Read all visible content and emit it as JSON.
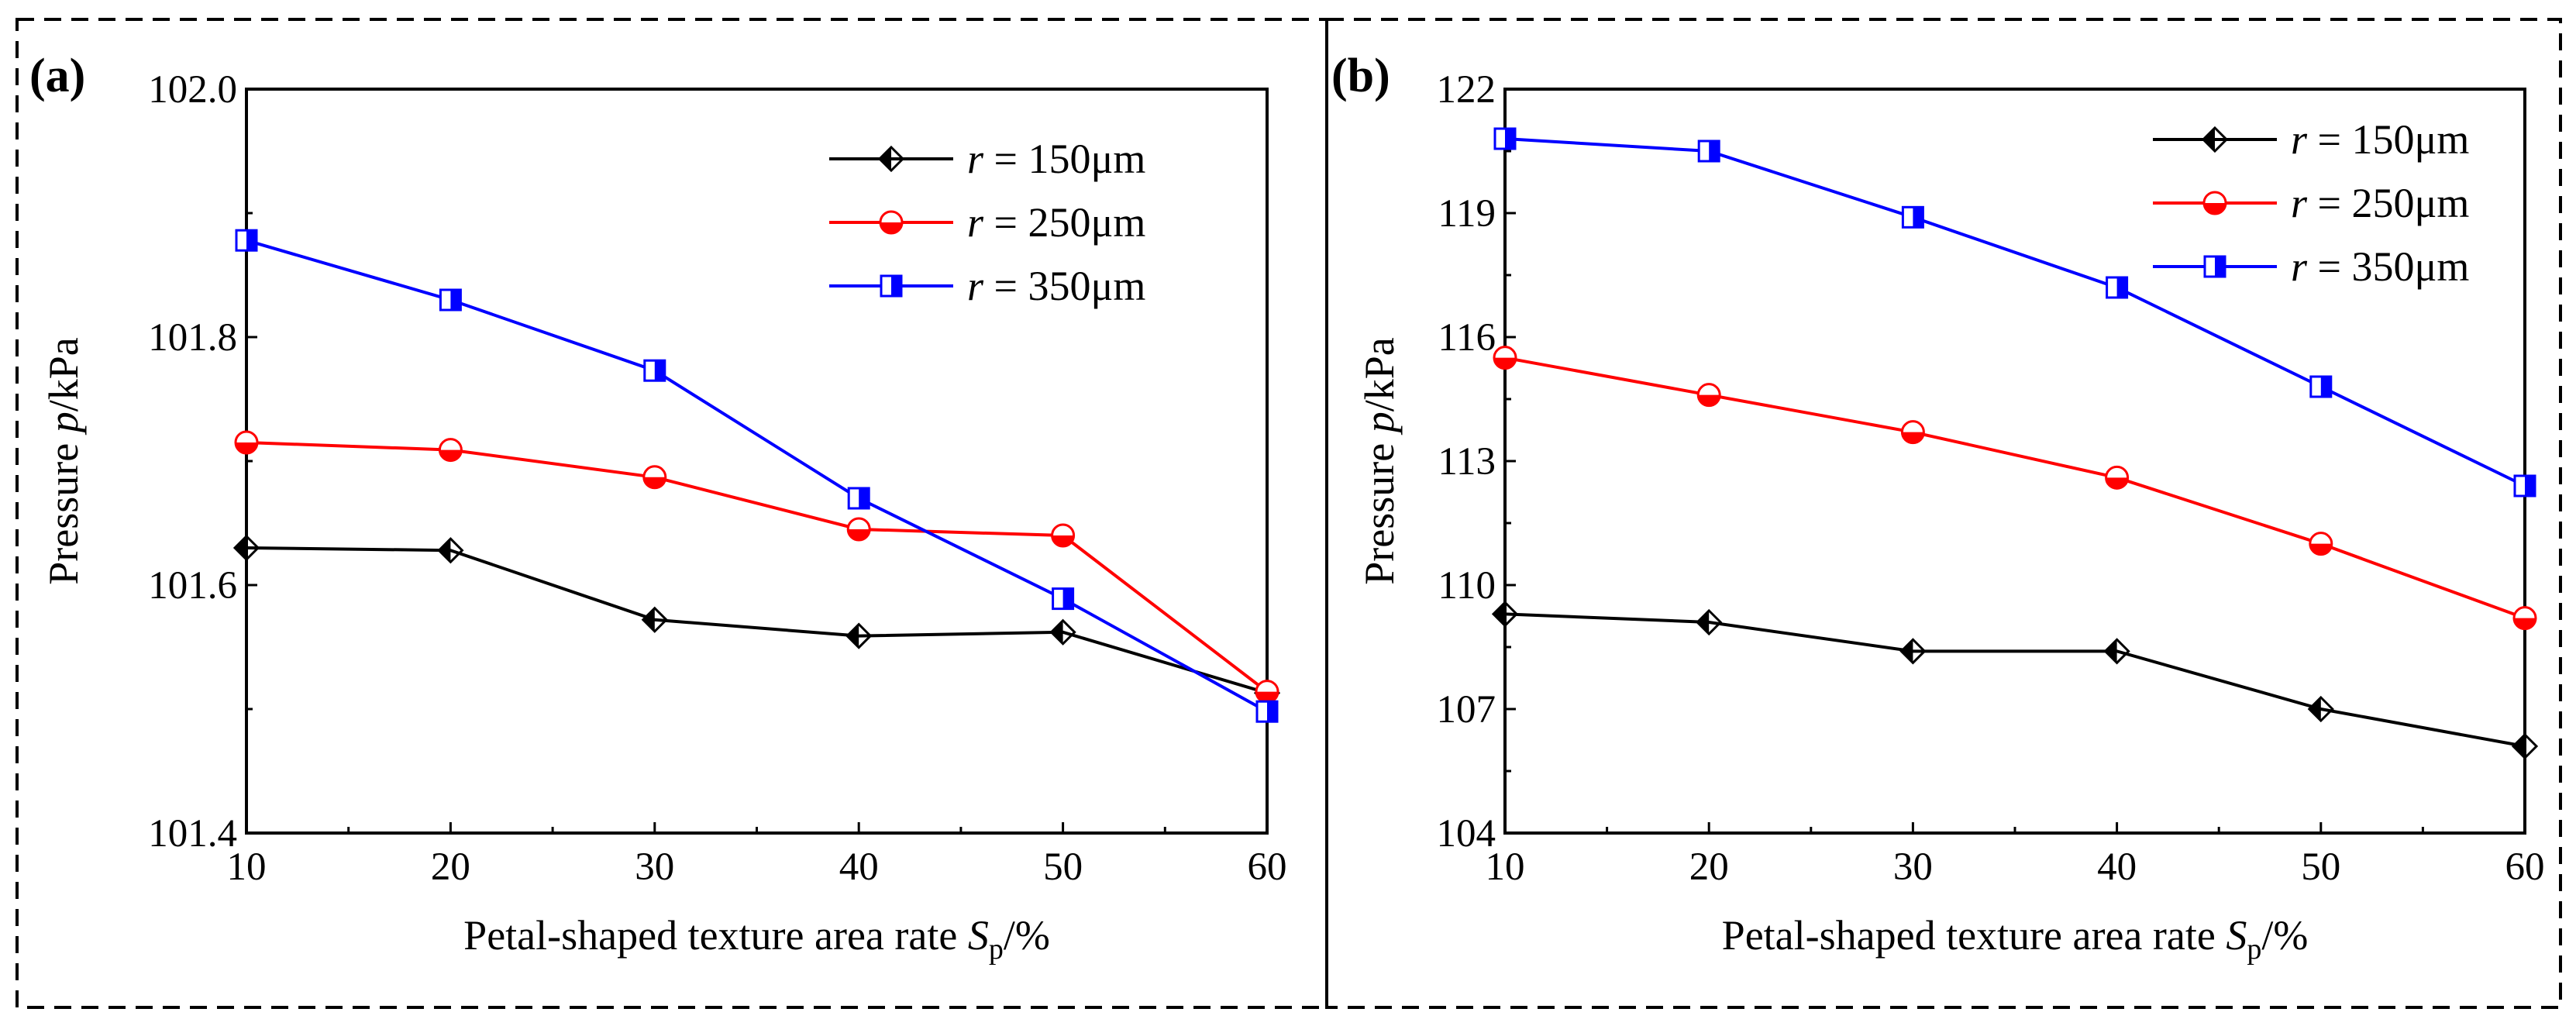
{
  "chart_data": [
    {
      "type": "line",
      "panel_label": "(a)",
      "xlabel": "Petal-shaped texture area rate ",
      "xlabel_var": "S",
      "xlabel_sub": "p",
      "xlabel_suffix": "/%",
      "ylabel": "Pressure ",
      "ylabel_var": "p",
      "ylabel_suffix": "/kPa",
      "x": [
        10,
        20,
        30,
        40,
        50,
        60
      ],
      "xlim": [
        10,
        60
      ],
      "ylim": [
        101.4,
        102.0
      ],
      "xticks": [
        "10",
        "20",
        "30",
        "40",
        "50",
        "60"
      ],
      "yticks": [
        "101.4",
        "101.6",
        "101.8",
        "102.0"
      ],
      "legend_position": "top-right",
      "series": [
        {
          "var": "r",
          "label": " = 150μm",
          "color": "#000000",
          "marker": "diamond-half",
          "values": [
            101.63,
            101.628,
            101.572,
            101.559,
            101.562,
            101.513
          ]
        },
        {
          "var": "r",
          "label": " = 250μm",
          "color": "#ff0000",
          "marker": "circle-half",
          "values": [
            101.715,
            101.709,
            101.687,
            101.645,
            101.64,
            101.514
          ]
        },
        {
          "var": "r",
          "label": " = 350μm",
          "color": "#0000ff",
          "marker": "square-half",
          "values": [
            101.878,
            101.83,
            101.773,
            101.67,
            101.589,
            101.498
          ]
        }
      ]
    },
    {
      "type": "line",
      "panel_label": "(b)",
      "xlabel": "Petal-shaped texture area rate ",
      "xlabel_var": "S",
      "xlabel_sub": "p",
      "xlabel_suffix": "/%",
      "ylabel": "Pressure ",
      "ylabel_var": "p",
      "ylabel_suffix": "/kPa",
      "x": [
        10,
        20,
        30,
        40,
        50,
        60
      ],
      "xlim": [
        10,
        60
      ],
      "ylim": [
        104,
        122
      ],
      "xticks": [
        "10",
        "20",
        "30",
        "40",
        "50",
        "60"
      ],
      "yticks": [
        "104",
        "107",
        "110",
        "113",
        "116",
        "119",
        "122"
      ],
      "legend_position": "top-right",
      "series": [
        {
          "var": "r",
          "label": " = 150μm",
          "color": "#000000",
          "marker": "diamond-half",
          "values": [
            109.3,
            109.1,
            108.4,
            108.4,
            107.0,
            106.1
          ]
        },
        {
          "var": "r",
          "label": " = 250μm",
          "color": "#ff0000",
          "marker": "circle-half",
          "values": [
            115.5,
            114.6,
            113.7,
            112.6,
            111.0,
            109.2
          ]
        },
        {
          "var": "r",
          "label": " = 350μm",
          "color": "#0000ff",
          "marker": "square-half",
          "values": [
            120.8,
            120.5,
            118.9,
            117.2,
            114.8,
            112.4
          ]
        }
      ]
    }
  ]
}
